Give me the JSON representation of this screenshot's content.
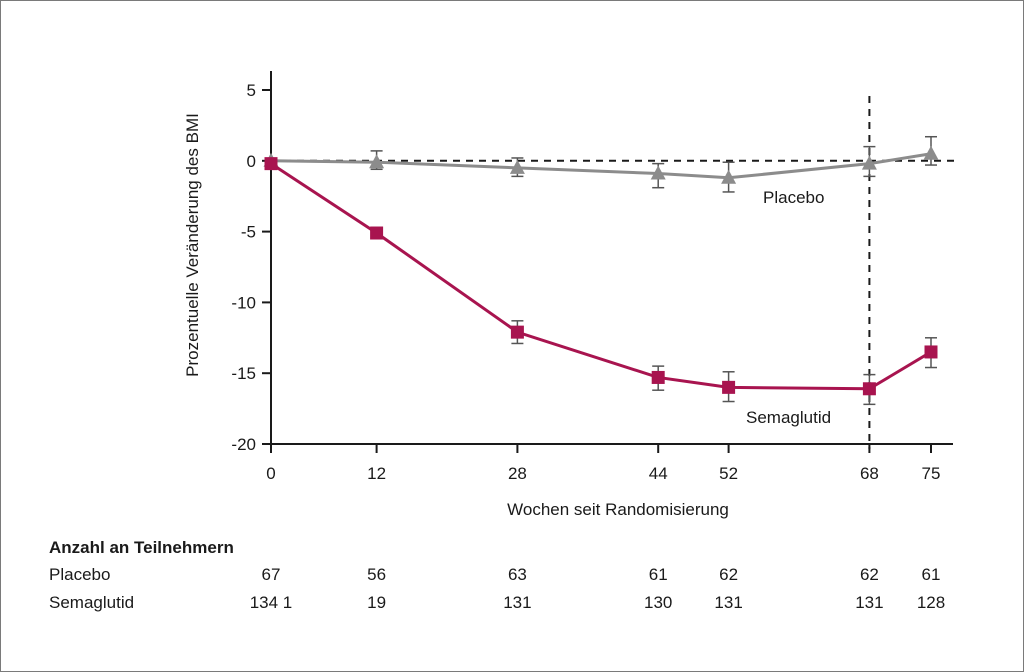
{
  "chart_data": {
    "type": "line",
    "title": "",
    "xlabel": "Wochen seit Randomisierung",
    "ylabel": "Prozentuelle Veränderung des BMI",
    "ylim": [
      -20,
      5
    ],
    "yticks": [
      "5",
      "0",
      "-5",
      "-10",
      "-15",
      "-20"
    ],
    "x": [
      0,
      12,
      28,
      44,
      52,
      68,
      75
    ],
    "xticks": [
      "0",
      "12",
      "28",
      "44",
      "52",
      "68",
      "75"
    ],
    "reference_line_x": 68,
    "reference_line_y": 0,
    "colors": {
      "placebo": "#8c8c8c",
      "semaglutid": "#a8144f",
      "axis": "#1a1a1a",
      "errorbar": "#555555"
    },
    "series": [
      {
        "name": "Placebo",
        "marker": "triangle",
        "values": [
          0,
          -0.1,
          -0.5,
          -0.9,
          -1.2,
          -0.2,
          0.5
        ],
        "err_low": [
          0,
          -0.6,
          -1.1,
          -1.9,
          -2.2,
          -1.1,
          -0.3
        ],
        "err_high": [
          0,
          0.7,
          0.2,
          -0.2,
          -0.1,
          1.0,
          1.7
        ]
      },
      {
        "name": "Semaglutid",
        "marker": "square",
        "values": [
          -0.2,
          -5.1,
          -12.1,
          -15.3,
          -16.0,
          -16.1,
          -13.5
        ],
        "err_low": [
          -0.2,
          -5.1,
          -12.9,
          -16.2,
          -17.0,
          -17.2,
          -14.6
        ],
        "err_high": [
          -0.2,
          -5.1,
          -11.3,
          -14.5,
          -14.9,
          -15.1,
          -12.5
        ]
      }
    ],
    "numbers_at_risk": {
      "title": "Anzahl an Teilnehmern",
      "rows": [
        {
          "label": "Placebo",
          "values": [
            "67",
            "56",
            "63",
            "61",
            "62",
            "62",
            "61"
          ]
        },
        {
          "label": "Semaglutid",
          "values": [
            "134 1",
            "19",
            "131",
            "130",
            "131",
            "131",
            "128"
          ]
        }
      ]
    }
  }
}
